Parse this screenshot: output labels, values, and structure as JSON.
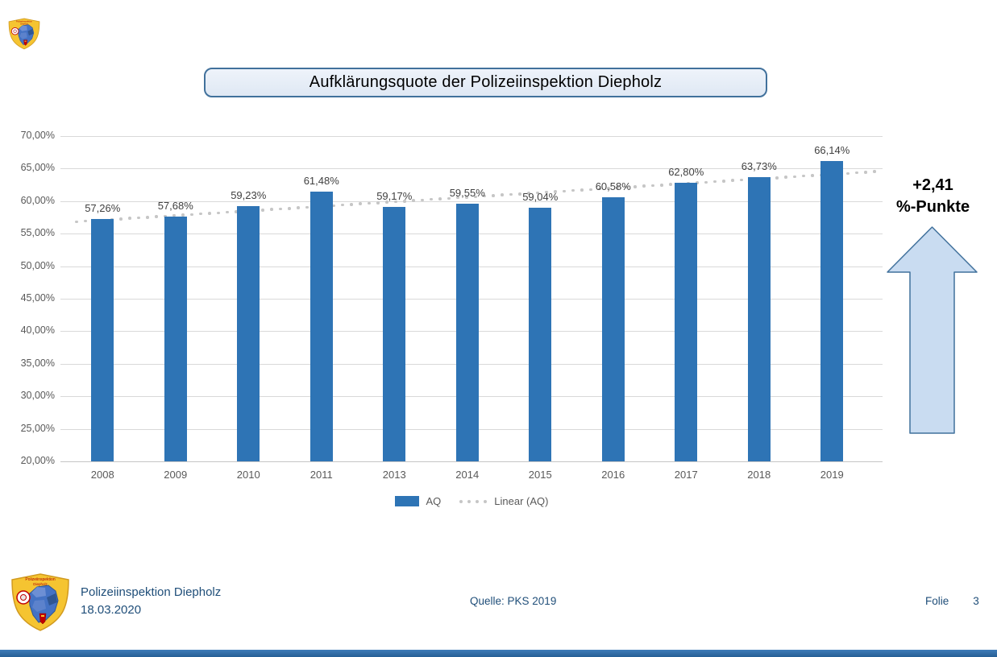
{
  "slide": {
    "title": "Aufklärungsquote der Polizeiinspektion Diepholz",
    "annotation": {
      "line1": "+2,41",
      "line2": "%-Punkte"
    },
    "footer": {
      "org": "Polizeiinspektion Diepholz",
      "date": "18.03.2020",
      "source": "Quelle: PKS 2019",
      "page_label": "Folie",
      "page_number": "3"
    },
    "icons": {
      "badge": "police-badge-icon",
      "arrow": "up-arrow-icon"
    },
    "colors": {
      "bar": "#2E74B5",
      "trend_dots": "#C6C6C6",
      "gridline": "#D9D9D9",
      "axis_text": "#595959",
      "data_label_text": "#404040",
      "title_border": "#41719C",
      "title_fill": "#E7EDF6",
      "arrow_fill": "#C9DCF1",
      "arrow_border": "#41719C",
      "footer_text": "#1F4E79",
      "bottom_bar": "#2E74B5"
    }
  },
  "chart_data": {
    "type": "bar",
    "title": "Aufklärungsquote der Polizeiinspektion Diepholz",
    "categories": [
      "2008",
      "2009",
      "2010",
      "2011",
      "2013",
      "2014",
      "2015",
      "2016",
      "2017",
      "2018",
      "2019"
    ],
    "series": [
      {
        "name": "AQ",
        "values": [
          57.26,
          57.68,
          59.23,
          61.48,
          59.17,
          59.55,
          59.04,
          60.58,
          62.8,
          63.73,
          66.14
        ],
        "labels": [
          "57,26%",
          "57,68%",
          "59,23%",
          "61,48%",
          "59,17%",
          "59,55%",
          "59,04%",
          "60,58%",
          "62,80%",
          "63,73%",
          "66,14%"
        ]
      }
    ],
    "trendline": {
      "name": "Linear (AQ)",
      "style": "dotted",
      "start_value": 57.09,
      "end_value": 64.12
    },
    "legend": [
      {
        "label": "AQ"
      },
      {
        "label": "Linear (AQ)"
      }
    ],
    "legend_position": "bottom",
    "grid": true,
    "ylim": [
      20,
      70
    ],
    "ytick_step": 5,
    "ytick_labels": [
      "20,00%",
      "25,00%",
      "30,00%",
      "35,00%",
      "40,00%",
      "45,00%",
      "50,00%",
      "55,00%",
      "60,00%",
      "65,00%",
      "70,00%"
    ],
    "xlabel": "",
    "ylabel": ""
  }
}
